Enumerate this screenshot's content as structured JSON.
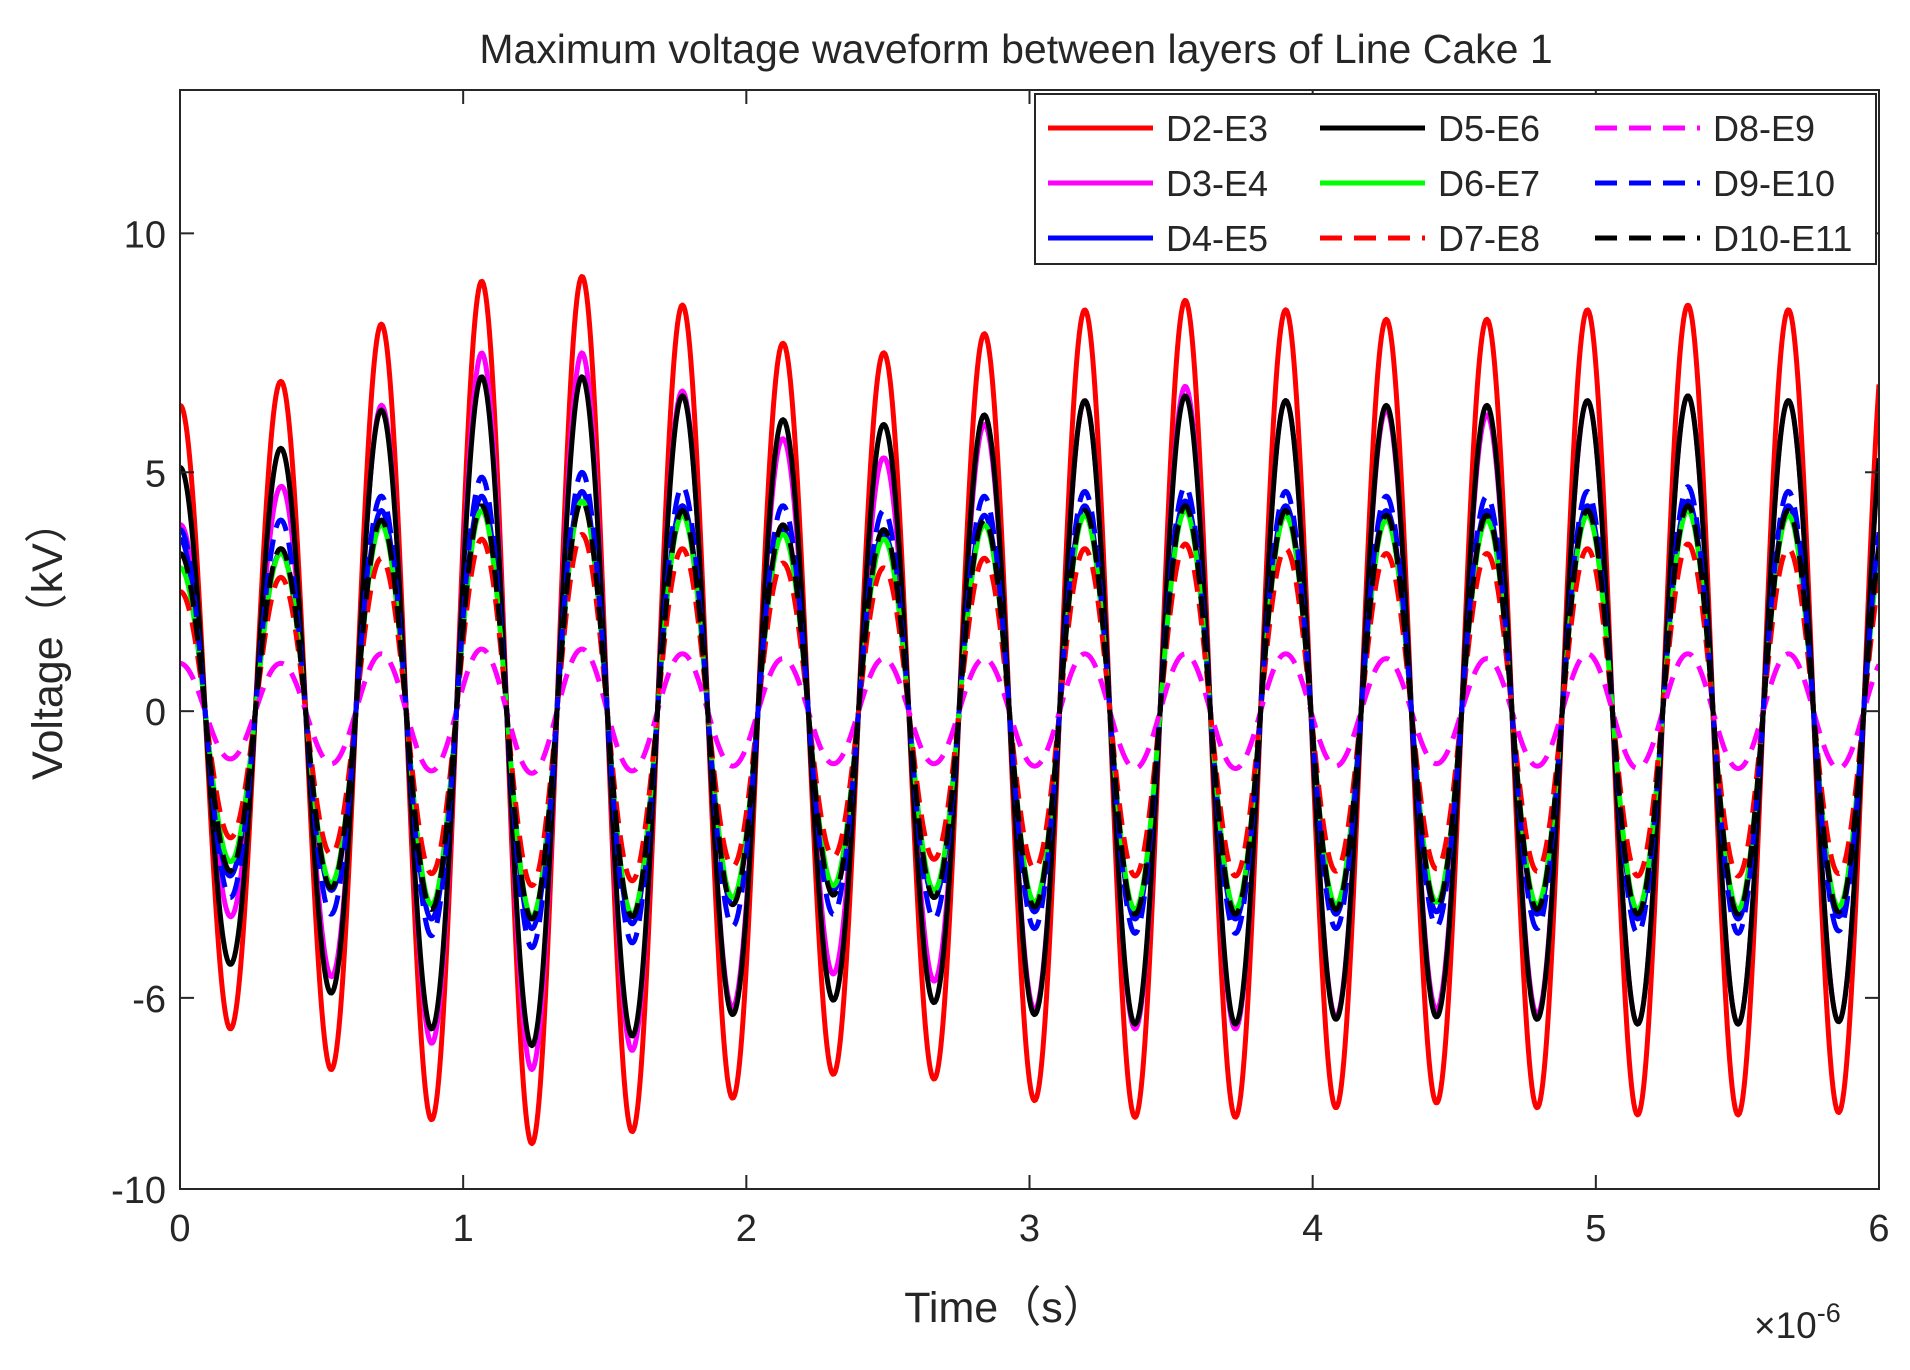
{
  "chart_data": {
    "type": "line",
    "title": "Maximum voltage waveform between layers of Line Cake 1",
    "xlabel": "Time（s）",
    "ylabel": "Voltage（kV）",
    "x_multiplier_base": "×10",
    "x_multiplier_exp": "-6",
    "xlim": [
      0,
      6
    ],
    "ylim": [
      -10,
      13
    ],
    "xticks": [
      0,
      1,
      2,
      3,
      4,
      5,
      6
    ],
    "yticks": [
      -10,
      -6,
      0,
      5,
      10
    ],
    "ytick_labels": [
      "-10",
      "-6",
      "0",
      "5",
      "10"
    ],
    "grid": false,
    "legend_location": "top-right",
    "period": 0.355,
    "series": [
      {
        "name": "D2-E3",
        "color": "#ff0000",
        "style": "solid",
        "amp_start": 6.4,
        "peak_amps": [
          6.9,
          8.1,
          9.0,
          9.1,
          8.5,
          7.7,
          7.5,
          7.9,
          8.4,
          8.6,
          8.4,
          8.2,
          8.2,
          8.4,
          8.5,
          8.4
        ]
      },
      {
        "name": "D3-E4",
        "color": "#ff00ff",
        "style": "solid",
        "amp_start": 3.9,
        "peak_amps": [
          4.7,
          6.4,
          7.5,
          7.5,
          6.7,
          5.7,
          5.3,
          6.0,
          6.5,
          6.8,
          6.5,
          6.3,
          6.2,
          6.5,
          6.6,
          6.5
        ]
      },
      {
        "name": "D4-E5",
        "color": "#0000ff",
        "style": "solid",
        "amp_start": 3.6,
        "peak_amps": [
          3.3,
          4.2,
          4.5,
          4.6,
          4.3,
          3.8,
          3.7,
          4.1,
          4.3,
          4.4,
          4.3,
          4.2,
          4.2,
          4.3,
          4.4,
          4.3
        ]
      },
      {
        "name": "D5-E6",
        "color": "#000000",
        "style": "solid",
        "amp_start": 5.1,
        "peak_amps": [
          5.5,
          6.3,
          7.0,
          7.0,
          6.6,
          6.1,
          6.0,
          6.2,
          6.5,
          6.6,
          6.5,
          6.4,
          6.4,
          6.5,
          6.6,
          6.5
        ]
      },
      {
        "name": "D6-E7",
        "color": "#00ff00",
        "style": "solid",
        "amp_start": 3.0,
        "peak_amps": [
          3.3,
          3.9,
          4.2,
          4.4,
          4.1,
          3.7,
          3.6,
          3.9,
          4.1,
          4.2,
          4.1,
          4.0,
          4.0,
          4.1,
          4.2,
          4.1
        ]
      },
      {
        "name": "D7-E8",
        "color": "#ff0000",
        "style": "dashed",
        "amp_start": 2.5,
        "peak_amps": [
          2.8,
          3.2,
          3.6,
          3.7,
          3.4,
          3.1,
          3.0,
          3.2,
          3.4,
          3.5,
          3.4,
          3.3,
          3.3,
          3.4,
          3.5,
          3.4
        ]
      },
      {
        "name": "D8-E9",
        "color": "#ff00ff",
        "style": "dashed",
        "amp_start": 1.0,
        "peak_amps": [
          1.0,
          1.2,
          1.3,
          1.3,
          1.2,
          1.1,
          1.1,
          1.1,
          1.2,
          1.2,
          1.2,
          1.1,
          1.1,
          1.2,
          1.2,
          1.2
        ]
      },
      {
        "name": "D9-E10",
        "color": "#0000ff",
        "style": "dashed",
        "amp_start": 3.8,
        "peak_amps": [
          4.0,
          4.5,
          4.9,
          5.0,
          4.7,
          4.3,
          4.2,
          4.5,
          4.6,
          4.7,
          4.6,
          4.5,
          4.5,
          4.6,
          4.7,
          4.6
        ]
      },
      {
        "name": "D10-E11",
        "color": "#000000",
        "style": "dashed",
        "amp_start": 3.3,
        "peak_amps": [
          3.4,
          4.0,
          4.3,
          4.4,
          4.2,
          3.9,
          3.8,
          4.0,
          4.2,
          4.3,
          4.2,
          4.1,
          4.1,
          4.2,
          4.3,
          4.2
        ]
      }
    ]
  }
}
